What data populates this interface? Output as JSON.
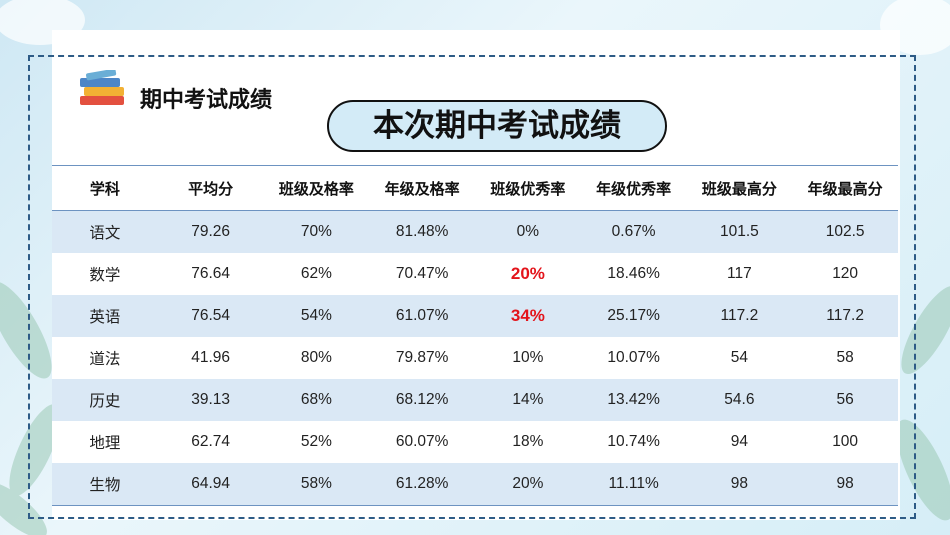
{
  "header": {
    "section_title": "期中考试成绩",
    "title": "本次期中考试成绩"
  },
  "table": {
    "columns": [
      "学科",
      "平均分",
      "班级及格率",
      "年级及格率",
      "班级优秀率",
      "年级优秀率",
      "班级最高分",
      "年级最高分"
    ],
    "rows": [
      [
        "语文",
        "79.26",
        "70%",
        "81.48%",
        "0%",
        "0.67%",
        "101.5",
        "102.5"
      ],
      [
        "数学",
        "76.64",
        "62%",
        "70.47%",
        "20%",
        "18.46%",
        "117",
        "120"
      ],
      [
        "英语",
        "76.54",
        "54%",
        "61.07%",
        "34%",
        "25.17%",
        "117.2",
        "117.2"
      ],
      [
        "道法",
        "41.96",
        "80%",
        "79.87%",
        "10%",
        "10.07%",
        "54",
        "58"
      ],
      [
        "历史",
        "39.13",
        "68%",
        "68.12%",
        "14%",
        "13.42%",
        "54.6",
        "56"
      ],
      [
        "地理",
        "62.74",
        "52%",
        "60.07%",
        "18%",
        "10.74%",
        "94",
        "100"
      ],
      [
        "生物",
        "64.94",
        "58%",
        "61.28%",
        "20%",
        "11.11%",
        "98",
        "98"
      ]
    ]
  }
}
